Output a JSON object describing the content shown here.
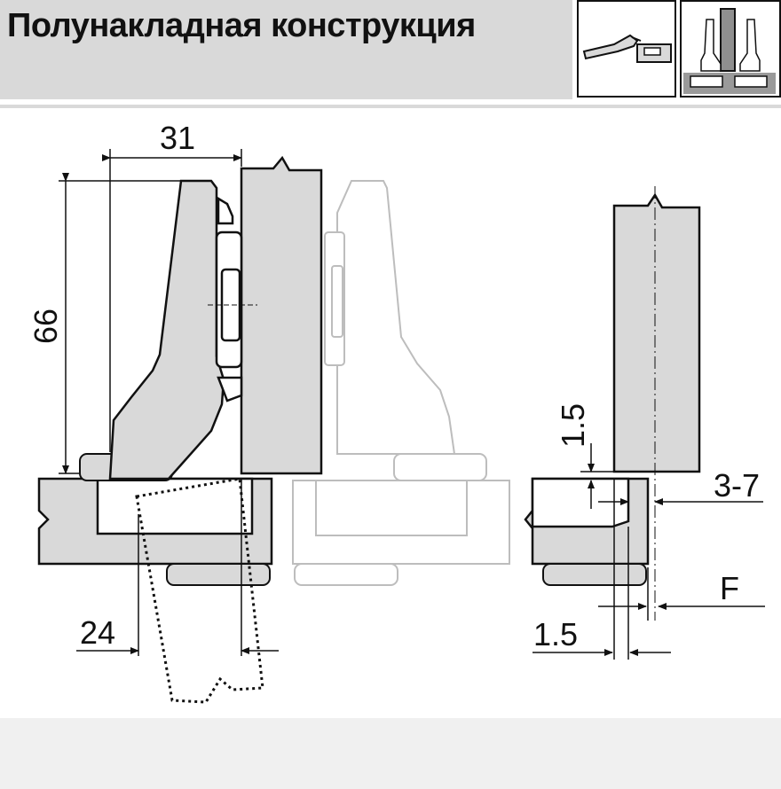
{
  "header": {
    "title": "Полунакладная конструкция"
  },
  "icons": {
    "mounting_side": "hinge-side-view-icon",
    "mounting_front": "half-overlay-front-view-icon"
  },
  "dimensions": {
    "width": "31",
    "height": "66",
    "bore_distance": "24",
    "gap_top": "1.5",
    "overlay_range": "3-7",
    "gap_bottom": "1.5",
    "overlay_label": "F"
  },
  "colors": {
    "panel_fill": "#d9d9d9",
    "line": "#111111",
    "ghost_line": "#bdbdbd"
  }
}
